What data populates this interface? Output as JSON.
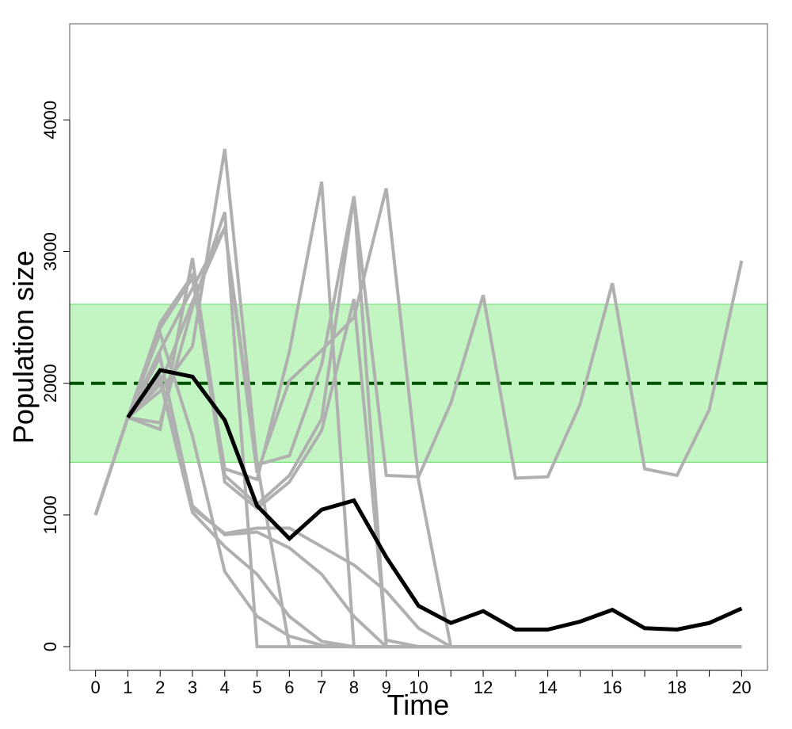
{
  "chart_data": {
    "type": "line",
    "xlabel": "Time",
    "ylabel": "Population size",
    "xlim": [
      -0.8,
      20.8
    ],
    "ylim": [
      -180,
      4730
    ],
    "x_ticks": [
      0,
      1,
      2,
      3,
      4,
      5,
      6,
      7,
      8,
      9,
      10,
      11,
      12,
      13,
      14,
      15,
      16,
      17,
      18,
      19,
      20
    ],
    "x_tick_labels": [
      "0",
      "1",
      "2",
      "3",
      "4",
      "5",
      "6",
      "7",
      "8",
      "9",
      "10",
      "",
      "12",
      "",
      "14",
      "",
      "16",
      "",
      "18",
      "",
      "20"
    ],
    "y_ticks": [
      0,
      1000,
      2000,
      3000,
      4000
    ],
    "y_tick_labels": [
      "0",
      "1000",
      "2000",
      "3000",
      "4000"
    ],
    "band": {
      "ymin": 1400,
      "ymax": 2600,
      "fill": "#c2f5c2",
      "edge": "#66e066"
    },
    "reference_line": {
      "y": 2000,
      "color": "#005200",
      "style": "dashed"
    },
    "colors": {
      "simulation": "#b0b0b0",
      "mean": "#000000"
    },
    "x": [
      0,
      1,
      2,
      3,
      4,
      5,
      6,
      7,
      8,
      9,
      10,
      11,
      12,
      13,
      14,
      15,
      16,
      17,
      18,
      19,
      20
    ],
    "series": [
      {
        "role": "simulation",
        "values": [
          1000,
          1740,
          2460,
          2820,
          1250,
          1050,
          1250,
          1640,
          2640,
          50,
          0,
          0,
          0,
          0,
          0,
          0,
          0,
          0,
          0,
          0,
          0
        ]
      },
      {
        "role": "simulation",
        "values": [
          1000,
          1740,
          2200,
          1070,
          850,
          870,
          750,
          550,
          230,
          0,
          0,
          0,
          0,
          0,
          0,
          0,
          0,
          0,
          0,
          0,
          0
        ]
      },
      {
        "role": "simulation",
        "values": [
          1000,
          1740,
          2420,
          2800,
          1350,
          1270,
          2240,
          3530,
          0,
          0,
          0,
          0,
          0,
          0,
          0,
          0,
          0,
          0,
          0,
          0,
          0
        ]
      },
      {
        "role": "simulation",
        "values": [
          1000,
          1740,
          2380,
          1600,
          570,
          230,
          80,
          10,
          0,
          0,
          0,
          0,
          0,
          0,
          0,
          0,
          0,
          0,
          0,
          0,
          0
        ]
      },
      {
        "role": "simulation",
        "values": [
          1000,
          1740,
          1650,
          2950,
          1300,
          1080,
          1300,
          1730,
          3420,
          1300,
          1290,
          1850,
          2670,
          1280,
          1290,
          1840,
          2760,
          1350,
          1300,
          1800,
          2930
        ]
      },
      {
        "role": "simulation",
        "values": [
          1000,
          1740,
          1700,
          2580,
          3300,
          0,
          0,
          0,
          0,
          0,
          0,
          0,
          0,
          0,
          0,
          0,
          0,
          0,
          0,
          0,
          0
        ]
      },
      {
        "role": "simulation",
        "values": [
          1000,
          1740,
          1940,
          2280,
          3780,
          1380,
          1450,
          2140,
          3420,
          0,
          0,
          0,
          0,
          0,
          0,
          0,
          0,
          0,
          0,
          0,
          0
        ]
      },
      {
        "role": "simulation",
        "values": [
          1000,
          1740,
          1990,
          2620,
          3180,
          1390,
          0,
          0,
          0,
          0,
          0,
          0,
          0,
          0,
          0,
          0,
          0,
          0,
          0,
          0,
          0
        ]
      },
      {
        "role": "simulation",
        "values": [
          1000,
          1740,
          2020,
          1020,
          760,
          550,
          230,
          40,
          0,
          0,
          0,
          0,
          0,
          0,
          0,
          0,
          0,
          0,
          0,
          0,
          0
        ]
      },
      {
        "role": "simulation",
        "values": [
          1000,
          1740,
          2050,
          1050,
          860,
          900,
          900,
          760,
          620,
          420,
          140,
          0,
          0,
          0,
          0,
          0,
          0,
          0,
          0,
          0,
          0
        ]
      },
      {
        "role": "simulation",
        "values": [
          1000,
          1740,
          2250,
          2720,
          3180,
          1320,
          2020,
          2250,
          2500,
          3480,
          1260,
          0,
          0,
          0,
          0,
          0,
          0,
          0,
          0,
          0,
          0
        ]
      },
      {
        "role": "mean",
        "values": [
          null,
          1740,
          2100,
          2050,
          1720,
          1070,
          820,
          1040,
          1110,
          680,
          310,
          180,
          270,
          130,
          130,
          190,
          280,
          140,
          130,
          180,
          290
        ]
      }
    ]
  }
}
